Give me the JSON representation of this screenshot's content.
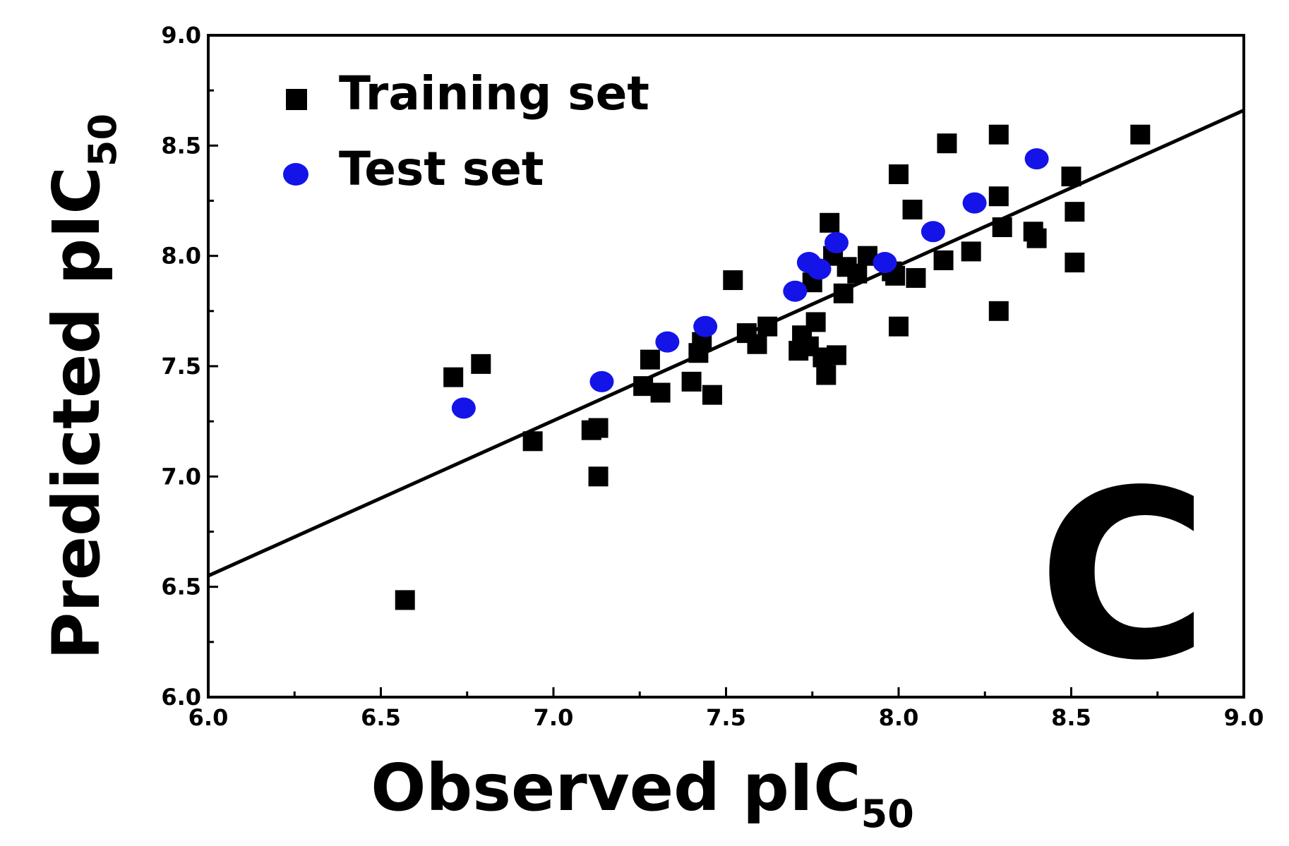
{
  "chart_data": {
    "type": "scatter",
    "xlabel": {
      "main": "Observed pIC",
      "sub": "50"
    },
    "ylabel": {
      "main": "Predicted pIC",
      "sub": "50"
    },
    "xlim": [
      6.0,
      9.0
    ],
    "ylim": [
      6.0,
      9.0
    ],
    "x_ticks": [
      "6.0",
      "6.5",
      "7.0",
      "7.5",
      "8.0",
      "8.5",
      "9.0"
    ],
    "y_ticks": [
      "6.0",
      "6.5",
      "7.0",
      "7.5",
      "8.0",
      "8.5",
      "9.0"
    ],
    "panel_label": "C",
    "legend": {
      "position": "top-left",
      "entries": [
        "Training set",
        "Test set"
      ]
    },
    "fit_line": {
      "x": [
        6.0,
        9.0
      ],
      "y": [
        6.55,
        8.66
      ]
    },
    "series": [
      {
        "name": "Training set",
        "marker": "square",
        "color": "#000000",
        "points": [
          [
            6.57,
            6.44
          ],
          [
            6.71,
            7.45
          ],
          [
            6.79,
            7.51
          ],
          [
            6.94,
            7.16
          ],
          [
            7.11,
            7.21
          ],
          [
            7.13,
            7.22
          ],
          [
            7.13,
            7.0
          ],
          [
            7.26,
            7.41
          ],
          [
            7.28,
            7.53
          ],
          [
            7.31,
            7.38
          ],
          [
            7.4,
            7.43
          ],
          [
            7.42,
            7.56
          ],
          [
            7.43,
            7.61
          ],
          [
            7.46,
            7.37
          ],
          [
            7.52,
            7.89
          ],
          [
            7.56,
            7.65
          ],
          [
            7.59,
            7.6
          ],
          [
            7.62,
            7.68
          ],
          [
            7.71,
            7.57
          ],
          [
            7.72,
            7.64
          ],
          [
            7.74,
            7.59
          ],
          [
            7.75,
            7.88
          ],
          [
            7.76,
            7.7
          ],
          [
            7.78,
            7.54
          ],
          [
            7.79,
            7.46
          ],
          [
            7.8,
            8.15
          ],
          [
            7.81,
            8.0
          ],
          [
            7.82,
            7.55
          ],
          [
            7.84,
            7.83
          ],
          [
            7.85,
            7.95
          ],
          [
            7.88,
            7.92
          ],
          [
            7.91,
            8.0
          ],
          [
            7.98,
            7.93
          ],
          [
            7.99,
            7.91
          ],
          [
            8.0,
            8.37
          ],
          [
            8.0,
            7.68
          ],
          [
            8.04,
            8.21
          ],
          [
            8.05,
            7.9
          ],
          [
            8.13,
            7.98
          ],
          [
            8.14,
            8.51
          ],
          [
            8.21,
            8.02
          ],
          [
            8.29,
            8.55
          ],
          [
            8.29,
            8.27
          ],
          [
            8.29,
            7.75
          ],
          [
            8.3,
            8.13
          ],
          [
            8.39,
            8.11
          ],
          [
            8.4,
            8.08
          ],
          [
            8.5,
            8.36
          ],
          [
            8.51,
            8.2
          ],
          [
            8.51,
            7.97
          ],
          [
            8.7,
            8.55
          ]
        ]
      },
      {
        "name": "Test set",
        "marker": "circle",
        "color": "#1414e8",
        "points": [
          [
            6.74,
            7.31
          ],
          [
            7.14,
            7.43
          ],
          [
            7.33,
            7.61
          ],
          [
            7.44,
            7.68
          ],
          [
            7.7,
            7.84
          ],
          [
            7.74,
            7.97
          ],
          [
            7.77,
            7.94
          ],
          [
            7.82,
            8.06
          ],
          [
            7.96,
            7.97
          ],
          [
            8.1,
            8.11
          ],
          [
            8.22,
            8.24
          ],
          [
            8.4,
            8.44
          ]
        ]
      }
    ]
  }
}
